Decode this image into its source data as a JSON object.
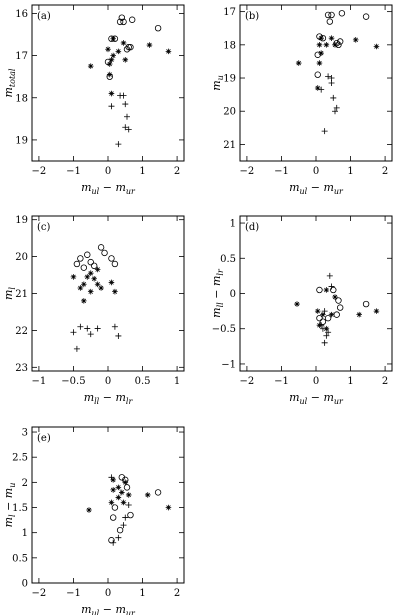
{
  "chart_data": [
    {
      "type": "scatter",
      "panel": "(a)",
      "xlabel": {
        "base": "m",
        "sub1": "ul",
        "mid": " − ",
        "base2": "m",
        "sub2": "ur"
      },
      "ylabel": {
        "base": "m",
        "sub1": "total"
      },
      "xlim": [
        -2.2,
        2.2
      ],
      "ylim": [
        19.5,
        15.8
      ],
      "y_inverted": true,
      "xticks": [
        -2,
        -1,
        0,
        1,
        2
      ],
      "yticks": [
        16,
        17,
        18,
        19
      ],
      "series": [
        {
          "marker": "circle",
          "points": [
            [
              0.4,
              16.1
            ],
            [
              0.35,
              16.2
            ],
            [
              0.45,
              16.2
            ],
            [
              0.7,
              16.15
            ],
            [
              1.45,
              16.35
            ],
            [
              0.1,
              16.6
            ],
            [
              0.2,
              16.6
            ],
            [
              0.6,
              16.8
            ],
            [
              0.65,
              16.8
            ],
            [
              0.55,
              16.85
            ],
            [
              0.0,
              17.15
            ],
            [
              0.05,
              17.5
            ]
          ]
        },
        {
          "marker": "star",
          "points": [
            [
              0.15,
              16.6
            ],
            [
              0.45,
              16.7
            ],
            [
              0.0,
              16.85
            ],
            [
              0.3,
              16.9
            ],
            [
              0.15,
              17.0
            ],
            [
              0.1,
              17.1
            ],
            [
              0.5,
              17.1
            ],
            [
              1.2,
              16.75
            ],
            [
              1.75,
              16.9
            ],
            [
              -0.5,
              17.25
            ],
            [
              0.05,
              17.2
            ],
            [
              0.05,
              17.45
            ],
            [
              0.1,
              17.9
            ]
          ]
        },
        {
          "marker": "plus",
          "points": [
            [
              0.35,
              17.95
            ],
            [
              0.45,
              17.95
            ],
            [
              0.1,
              18.2
            ],
            [
              0.5,
              18.15
            ],
            [
              0.55,
              18.45
            ],
            [
              0.5,
              18.7
            ],
            [
              0.6,
              18.75
            ],
            [
              0.3,
              19.1
            ]
          ]
        }
      ]
    },
    {
      "type": "scatter",
      "panel": "(b)",
      "xlabel": {
        "base": "m",
        "sub1": "ul",
        "mid": " − ",
        "base2": "m",
        "sub2": "ur"
      },
      "ylabel": {
        "base": "m",
        "sub1": "u"
      },
      "xlim": [
        -2.2,
        2.2
      ],
      "ylim": [
        21.5,
        16.8
      ],
      "y_inverted": true,
      "xticks": [
        -2,
        -1,
        0,
        1,
        2
      ],
      "yticks": [
        17,
        18,
        19,
        20,
        21
      ],
      "series": [
        {
          "marker": "circle",
          "points": [
            [
              0.35,
              17.1
            ],
            [
              0.45,
              17.1
            ],
            [
              0.4,
              17.3
            ],
            [
              0.75,
              17.05
            ],
            [
              1.45,
              17.15
            ],
            [
              0.1,
              17.75
            ],
            [
              0.2,
              17.8
            ],
            [
              0.6,
              17.95
            ],
            [
              0.7,
              17.9
            ],
            [
              0.65,
              18.0
            ],
            [
              0.05,
              18.3
            ],
            [
              0.05,
              18.9
            ]
          ]
        },
        {
          "marker": "star",
          "points": [
            [
              0.15,
              17.8
            ],
            [
              0.45,
              17.8
            ],
            [
              0.1,
              18.0
            ],
            [
              0.3,
              18.0
            ],
            [
              0.55,
              18.0
            ],
            [
              0.15,
              18.25
            ],
            [
              0.1,
              18.55
            ],
            [
              0.05,
              19.3
            ],
            [
              1.15,
              17.85
            ],
            [
              1.75,
              18.05
            ],
            [
              -0.5,
              18.55
            ]
          ]
        },
        {
          "marker": "plus",
          "points": [
            [
              0.35,
              18.95
            ],
            [
              0.45,
              19.0
            ],
            [
              0.45,
              19.15
            ],
            [
              0.5,
              19.6
            ],
            [
              0.6,
              19.9
            ],
            [
              0.55,
              20.0
            ],
            [
              0.25,
              20.6
            ],
            [
              0.15,
              19.35
            ]
          ]
        }
      ]
    },
    {
      "type": "scatter",
      "panel": "(c)",
      "xlabel": {
        "base": "m",
        "sub1": "ll",
        "mid": " − ",
        "base2": "m",
        "sub2": "lr"
      },
      "ylabel": {
        "base": "m",
        "sub1": "l"
      },
      "xlim": [
        -1.1,
        1.1
      ],
      "ylim": [
        23.1,
        18.9
      ],
      "y_inverted": true,
      "xticks": [
        -1,
        -0.5,
        0,
        0.5,
        1
      ],
      "yticks": [
        19,
        20,
        21,
        22,
        23
      ],
      "series": [
        {
          "marker": "circle",
          "points": [
            [
              -0.1,
              19.75
            ],
            [
              -0.05,
              19.9
            ],
            [
              -0.3,
              19.95
            ],
            [
              -0.4,
              20.05
            ],
            [
              -0.45,
              20.2
            ],
            [
              -0.25,
              20.15
            ],
            [
              -0.2,
              20.25
            ],
            [
              -0.35,
              20.3
            ],
            [
              0.05,
              20.05
            ],
            [
              0.1,
              20.2
            ]
          ]
        },
        {
          "marker": "star",
          "points": [
            [
              -0.15,
              20.35
            ],
            [
              -0.25,
              20.45
            ],
            [
              -0.3,
              20.55
            ],
            [
              -0.5,
              20.55
            ],
            [
              -0.2,
              20.6
            ],
            [
              -0.35,
              20.75
            ],
            [
              -0.15,
              20.75
            ],
            [
              -0.4,
              20.85
            ],
            [
              -0.1,
              20.85
            ],
            [
              -0.25,
              20.95
            ],
            [
              -0.35,
              21.2
            ],
            [
              0.05,
              20.7
            ],
            [
              0.1,
              20.95
            ]
          ]
        },
        {
          "marker": "plus",
          "points": [
            [
              -0.4,
              21.9
            ],
            [
              -0.3,
              21.95
            ],
            [
              -0.15,
              21.95
            ],
            [
              0.1,
              21.9
            ],
            [
              -0.5,
              22.05
            ],
            [
              -0.25,
              22.1
            ],
            [
              0.15,
              22.15
            ],
            [
              -0.45,
              22.5
            ]
          ]
        }
      ]
    },
    {
      "type": "scatter",
      "panel": "(d)",
      "xlabel": {
        "base": "m",
        "sub1": "ul",
        "mid": " − ",
        "base2": "m",
        "sub2": "ur"
      },
      "ylabel": {
        "base": "m",
        "sub1": "ll",
        "mid": " − ",
        "base2": "m",
        "sub2": "lr"
      },
      "xlim": [
        -2.2,
        2.2
      ],
      "ylim": [
        -1.1,
        1.1
      ],
      "y_inverted": false,
      "xticks": [
        -2,
        -1,
        0,
        1,
        2
      ],
      "yticks": [
        -1,
        -0.5,
        0,
        0.5,
        1
      ],
      "series": [
        {
          "marker": "circle",
          "points": [
            [
              0.1,
              0.05
            ],
            [
              0.5,
              0.05
            ],
            [
              0.65,
              -0.1
            ],
            [
              0.7,
              -0.2
            ],
            [
              0.6,
              -0.3
            ],
            [
              0.1,
              -0.35
            ],
            [
              0.2,
              -0.4
            ],
            [
              0.35,
              -0.35
            ],
            [
              1.45,
              -0.15
            ]
          ]
        },
        {
          "marker": "star",
          "points": [
            [
              0.3,
              0.05
            ],
            [
              0.55,
              -0.05
            ],
            [
              0.05,
              -0.25
            ],
            [
              0.2,
              -0.3
            ],
            [
              0.45,
              -0.3
            ],
            [
              0.1,
              -0.45
            ],
            [
              0.3,
              -0.5
            ],
            [
              1.25,
              -0.3
            ],
            [
              1.75,
              -0.25
            ],
            [
              -0.55,
              -0.15
            ]
          ]
        },
        {
          "marker": "plus",
          "points": [
            [
              0.4,
              0.25
            ],
            [
              0.45,
              0.1
            ],
            [
              0.25,
              -0.25
            ],
            [
              0.15,
              -0.45
            ],
            [
              0.35,
              -0.55
            ],
            [
              0.3,
              -0.6
            ],
            [
              0.25,
              -0.7
            ],
            [
              0.2,
              -0.5
            ]
          ]
        }
      ]
    },
    {
      "type": "scatter",
      "panel": "(e)",
      "xlabel": {
        "base": "m",
        "sub1": "ul",
        "mid": " − ",
        "base2": "m",
        "sub2": "ur"
      },
      "ylabel": {
        "base": "m",
        "sub1": "l",
        "mid": " − ",
        "base2": "m",
        "sub2": "u"
      },
      "xlim": [
        -2.2,
        2.2
      ],
      "ylim": [
        0,
        3.1
      ],
      "y_inverted": false,
      "xticks": [
        -2,
        -1,
        0,
        1,
        2
      ],
      "yticks": [
        0,
        0.5,
        1,
        1.5,
        2,
        2.5,
        3
      ],
      "series": [
        {
          "marker": "circle",
          "points": [
            [
              0.4,
              2.1
            ],
            [
              0.5,
              2.05
            ],
            [
              0.55,
              1.9
            ],
            [
              0.2,
              1.5
            ],
            [
              0.65,
              1.35
            ],
            [
              0.15,
              1.3
            ],
            [
              0.35,
              1.05
            ],
            [
              0.1,
              0.85
            ],
            [
              1.45,
              1.8
            ]
          ]
        },
        {
          "marker": "star",
          "points": [
            [
              0.15,
              2.05
            ],
            [
              0.5,
              2.0
            ],
            [
              0.3,
              1.9
            ],
            [
              0.15,
              1.85
            ],
            [
              0.4,
              1.8
            ],
            [
              0.6,
              1.75
            ],
            [
              0.3,
              1.7
            ],
            [
              0.1,
              1.6
            ],
            [
              0.45,
              1.6
            ],
            [
              1.15,
              1.75
            ],
            [
              1.75,
              1.5
            ],
            [
              -0.55,
              1.45
            ]
          ]
        },
        {
          "marker": "plus",
          "points": [
            [
              0.1,
              2.1
            ],
            [
              0.6,
              1.55
            ],
            [
              0.5,
              1.3
            ],
            [
              0.45,
              1.15
            ],
            [
              0.3,
              0.9
            ],
            [
              0.15,
              0.8
            ]
          ]
        }
      ]
    }
  ]
}
